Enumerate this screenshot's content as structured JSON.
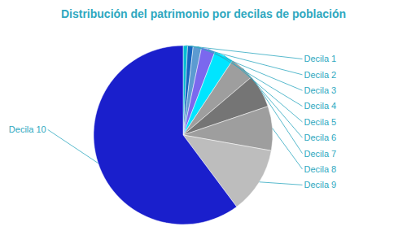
{
  "chart_data": {
    "type": "pie",
    "title": "Distribución del patrimonio por decilas de población",
    "categories": [
      "Decila 1",
      "Decila 2",
      "Decila 3",
      "Decila 4",
      "Decila 5",
      "Decila 6",
      "Decila 7",
      "Decila 8",
      "Decila 9",
      "Decila 10"
    ],
    "values": [
      0.8,
      1.0,
      1.5,
      2.5,
      3.5,
      4.5,
      6.0,
      8.0,
      12.0,
      60.2
    ],
    "colors": [
      "#00BCD4",
      "#1565C0",
      "#5C9BD1",
      "#7B68EE",
      "#00E5FF",
      "#9E9E9E",
      "#757575",
      "#9E9E9E",
      "#BDBDBD",
      "#1A1FCC"
    ]
  }
}
